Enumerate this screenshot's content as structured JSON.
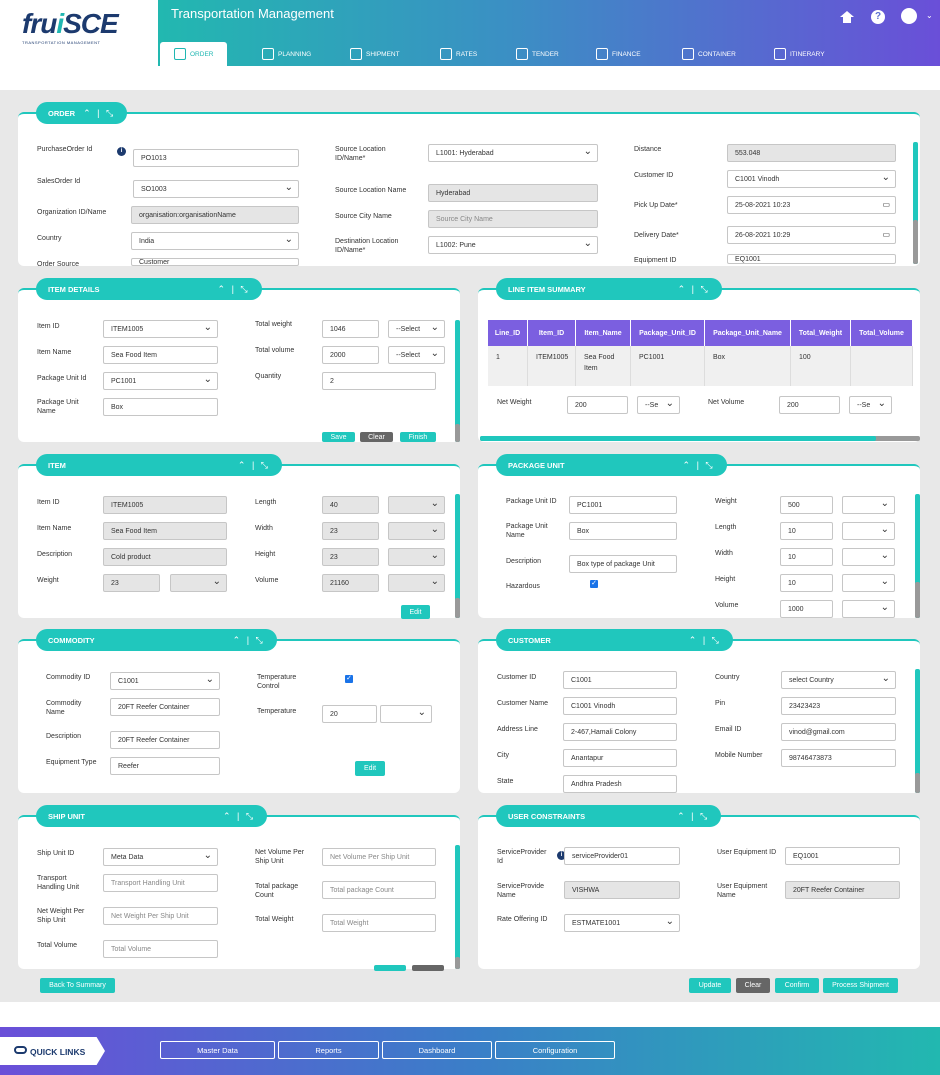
{
  "brand": {
    "logo_main": "fru",
    "logo_accent": "i",
    "logo_rest": "SCE",
    "logo_sub": "TRANSPORTATION MANAGEMENT"
  },
  "header": {
    "title": "Transportation Management"
  },
  "nav_tabs": [
    {
      "label": "ORDER",
      "icon": "order-icon"
    },
    {
      "label": "PLANNING",
      "icon": "planning-icon"
    },
    {
      "label": "SHIPMENT",
      "icon": "shipment-icon"
    },
    {
      "label": "RATES",
      "icon": "rates-icon"
    },
    {
      "label": "TENDER",
      "icon": "tender-icon"
    },
    {
      "label": "FINANCE",
      "icon": "finance-icon"
    },
    {
      "label": "CONTAINER",
      "icon": "container-icon"
    },
    {
      "label": "ITINERARY",
      "icon": "itinerary-icon"
    }
  ],
  "order": {
    "title": "ORDER",
    "po_label": "PurchaseOrder Id",
    "po_value": "PO1013",
    "so_label": "SalesOrder Id",
    "so_value": "SO1003",
    "org_label": "Organization ID/Name",
    "org_value": "organisation:organisationName",
    "country_label": "Country",
    "country_value": "India",
    "source_label": "Order Source",
    "source_value": "Customer",
    "src_loc_label": "Source Location ID/Name*",
    "src_loc_value": "L1001: Hyderabad",
    "src_name_label": "Source Location Name",
    "src_name_value": "Hyderabad",
    "src_city_label": "Source City Name",
    "src_city_placeholder": "Source City Name",
    "dest_loc_label": "Destination Location ID/Name*",
    "dest_loc_value": "L1002: Pune",
    "distance_label": "Distance",
    "distance_value": "553.048",
    "customer_label": "Customer ID",
    "customer_value": "C1001 Vinodh",
    "pickup_label": "Pick Up Date*",
    "pickup_value": "25-08-2021 10:23",
    "delivery_label": "Delivery Date*",
    "delivery_value": "26-08-2021 10:29",
    "equipment_label": "Equipment ID",
    "equipment_value": "EQ1001"
  },
  "item_details": {
    "title": "ITEM DETAILS",
    "item_id_label": "Item ID",
    "item_id_value": "ITEM1005",
    "item_name_label": "Item Name",
    "item_name_value": "Sea Food Item",
    "pkg_unit_label": "Package Unit Id",
    "pkg_unit_value": "PC1001",
    "pkg_unit_name_label": "Package Unit Name",
    "pkg_unit_name_value": "Box",
    "total_weight_label": "Total weight",
    "total_weight_value": "1046",
    "weight_unit": "--Select",
    "total_volume_label": "Total volume",
    "total_volume_value": "2000",
    "volume_unit": "--Select",
    "quantity_label": "Quantity",
    "quantity_value": "2",
    "save": "Save",
    "clear": "Clear",
    "finish": "Finish"
  },
  "line_item_summary": {
    "title": "LINE ITEM SUMMARY",
    "headers": [
      "Line_ID",
      "Item_ID",
      "Item_Name",
      "Package_Unit_ID",
      "Package_Unit_Name",
      "Total_Weight",
      "Total_Volume"
    ],
    "row": [
      "1",
      "ITEM1005",
      "Sea Food Item",
      "PC1001",
      "Box",
      "100",
      ""
    ],
    "net_weight_label": "Net Weight",
    "net_weight_value": "200",
    "net_weight_unit": "--Se",
    "net_volume_label": "Net Volume",
    "net_volume_value": "200",
    "net_volume_unit": "--Se"
  },
  "item": {
    "title": "ITEM",
    "item_id_label": "Item ID",
    "item_id_value": "ITEM1005",
    "item_name_label": "Item Name",
    "item_name_value": "Sea Food Item",
    "desc_label": "Description",
    "desc_value": "Cold product",
    "weight_label": "Weight",
    "weight_value": "23",
    "length_label": "Length",
    "length_value": "40",
    "width_label": "Width",
    "width_value": "23",
    "height_label": "Height",
    "height_value": "23",
    "volume_label": "Volume",
    "volume_value": "21160",
    "edit": "Edit"
  },
  "package_unit": {
    "title": "PACKAGE UNIT",
    "id_label": "Package Unit ID",
    "id_value": "PC1001",
    "name_label": "Package Unit Name",
    "name_value": "Box",
    "desc_label": "Description",
    "desc_value": "Box type of package Unit",
    "hazardous_label": "Hazardous",
    "weight_label": "Weight",
    "weight_value": "500",
    "length_label": "Length",
    "length_value": "10",
    "width_label": "Width",
    "width_value": "10",
    "height_label": "Height",
    "height_value": "10",
    "volume_label": "Volume",
    "volume_value": "1000"
  },
  "commodity": {
    "title": "COMMODITY",
    "id_label": "Commodity ID",
    "id_value": "C1001",
    "name_label": "Commodity Name",
    "name_value": "20FT Reefer Container",
    "desc_label": "Description",
    "desc_value": "20FT Reefer Container",
    "equip_label": "Equipment Type",
    "equip_value": "Reefer",
    "temp_ctrl_label": "Temperature Control",
    "temp_label": "Temperature",
    "temp_value": "20",
    "edit": "Edit"
  },
  "customer": {
    "title": "CUSTOMER",
    "id_label": "Customer ID",
    "id_value": "C1001",
    "name_label": "Customer Name",
    "name_value": "C1001 Vinodh",
    "addr_label": "Address Line",
    "addr_value": "2-467,Hamali Colony",
    "city_label": "City",
    "city_value": "Anantapur",
    "state_label": "State",
    "state_value": "Andhra Pradesh",
    "country_label": "Country",
    "country_value": "select Country",
    "pin_label": "Pin",
    "pin_value": "23423423",
    "email_label": "Email ID",
    "email_value": "vinod@gmail.com",
    "mobile_label": "Mobile Number",
    "mobile_value": "98746473873"
  },
  "ship_unit": {
    "title": "SHIP UNIT",
    "id_label": "Ship Unit ID",
    "id_value": "Meta Data",
    "thu_label": "Transport Handling Unit",
    "thu_placeholder": "Transport Handling Unit",
    "nw_label": "Net Weight Per Ship Unit",
    "nw_placeholder": "Net Weight Per Ship Unit",
    "tv_label": "Total Volume",
    "tv_placeholder": "Total Volume",
    "nv_label": "Net Volume Per Ship Unit",
    "nv_placeholder": "Net Volume Per Ship Unit",
    "tpc_label": "Total package Count",
    "tpc_placeholder": "Total package Count",
    "tw_label": "Total Weight",
    "tw_placeholder": "Total Weight"
  },
  "user_constraints": {
    "title": "USER CONSTRAINTS",
    "sp_id_label": "ServiceProvider Id",
    "sp_id_value": "serviceProvider01",
    "sp_name_label": "ServiceProvide Name",
    "sp_name_value": "VISHWA",
    "rate_label": "Rate Offering ID",
    "rate_value": "ESTMATE1001",
    "ueq_id_label": "User Equipment ID",
    "ueq_id_value": "EQ1001",
    "ueq_name_label": "User Equipment Name",
    "ueq_name_value": "20FT Reefer Container"
  },
  "actions": {
    "back": "Back To Summary",
    "update": "Update",
    "clear": "Clear",
    "confirm": "Confirm",
    "process": "Process Shipment"
  },
  "quick_links": {
    "title": "QUICK LINKS",
    "items": [
      "Master Data",
      "Reports",
      "Dashboard",
      "Configuration"
    ]
  }
}
